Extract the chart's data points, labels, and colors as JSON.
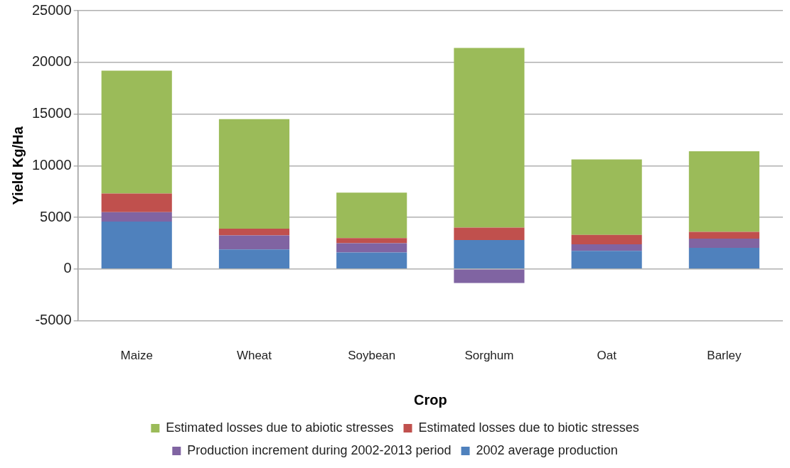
{
  "chart_data": {
    "type": "bar",
    "stacked": true,
    "xlabel": "Crop",
    "ylabel": "Yield Kg/Ha",
    "categories": [
      "Maize",
      "Wheat",
      "Soybean",
      "Sorghum",
      "Oat",
      "Barley"
    ],
    "series": [
      {
        "name": "2002 average production",
        "color": "#4f81bd",
        "values": [
          4600,
          1900,
          1600,
          2800,
          1750,
          2050
        ]
      },
      {
        "name": "Production increment during 2002-2013 period",
        "color": "#8064a2",
        "values": [
          900,
          1350,
          900,
          -1350,
          650,
          900
        ]
      },
      {
        "name": "Estimated losses due to biotic stresses",
        "color": "#c0504d",
        "values": [
          1800,
          650,
          500,
          1200,
          900,
          650
        ]
      },
      {
        "name": "Estimated losses due to abiotic stresses",
        "color": "#9bbb59",
        "values": [
          11900,
          10600,
          4400,
          17400,
          7300,
          7800
        ]
      }
    ],
    "ylim": [
      -5000,
      25000
    ],
    "yticks": [
      -5000,
      0,
      5000,
      10000,
      15000,
      20000,
      25000
    ],
    "grid": "y",
    "legend": "bottom"
  }
}
